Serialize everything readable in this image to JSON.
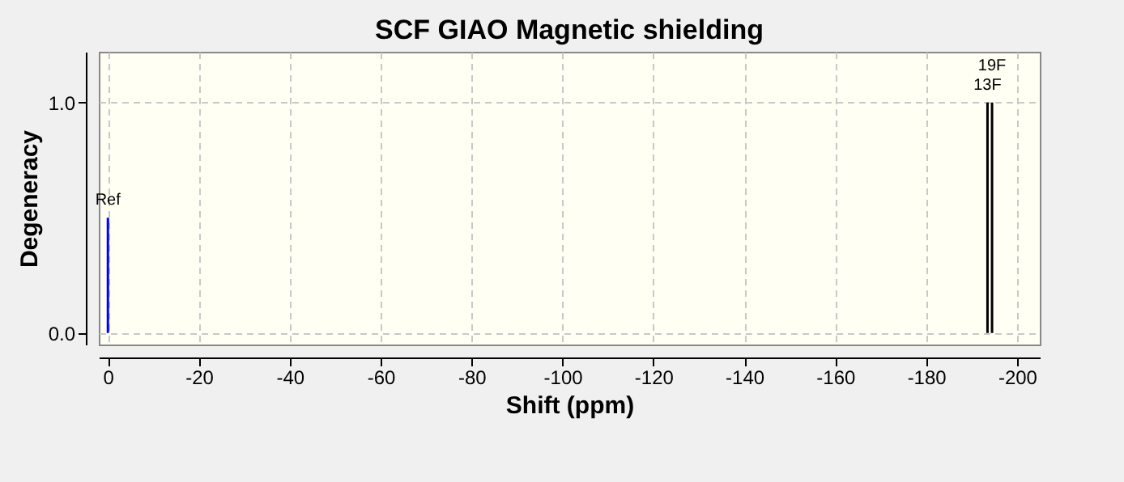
{
  "chart_data": {
    "type": "bar",
    "title": "SCF GIAO Magnetic shielding",
    "xlabel": "Shift (ppm)",
    "ylabel": "Degeneracy",
    "series": [
      {
        "name": "Ref",
        "color": "#0000ff",
        "x": [
          0
        ],
        "values": [
          0.5
        ]
      },
      {
        "name": "13F",
        "color": "#000000",
        "x": [
          -193.5
        ],
        "values": [
          1.0
        ]
      },
      {
        "name": "19F",
        "color": "#000000",
        "x": [
          -194.5
        ],
        "values": [
          1.0
        ]
      }
    ],
    "xlim": [
      2,
      -205
    ],
    "xticks": [
      0,
      -20,
      -40,
      -60,
      -80,
      -100,
      -120,
      -140,
      -160,
      -180,
      -200
    ],
    "ylim": [
      -0.05,
      1.22
    ],
    "yticks": [
      {
        "value": 0,
        "label": "0.0"
      },
      {
        "value": 1,
        "label": "1.0"
      }
    ],
    "grid": true,
    "line_style": "dashed",
    "legend": false
  }
}
